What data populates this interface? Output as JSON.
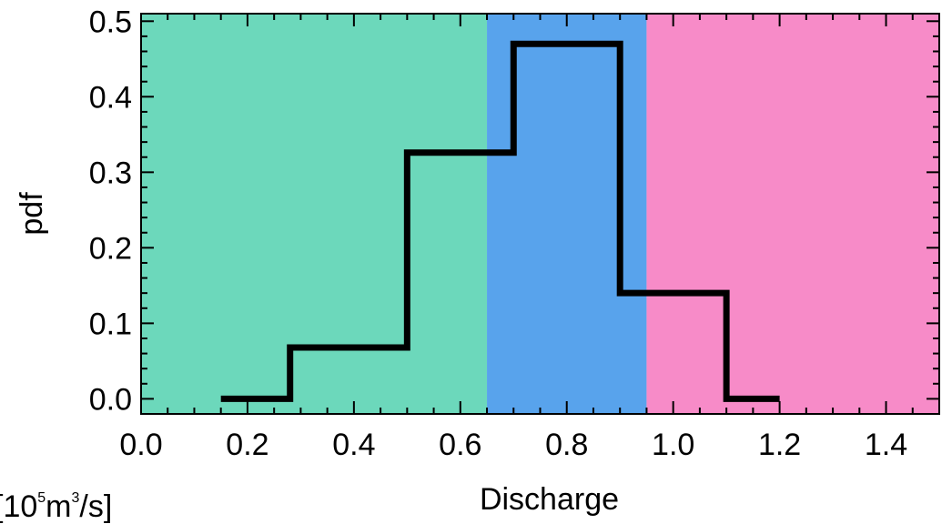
{
  "chart_data": {
    "type": "step",
    "title": "",
    "xlabel": "Discharge",
    "ylabel": "pdf",
    "unit_note": {
      "prefix": "[10",
      "exp": "5",
      "mid": "m",
      "exp2": "3",
      "suffix": "/s]"
    },
    "xlim": [
      0.0,
      1.5
    ],
    "ylim": [
      -0.02,
      0.51
    ],
    "xticks": [
      0.0,
      0.2,
      0.4,
      0.6,
      0.8,
      1.0,
      1.2,
      1.4
    ],
    "xtick_labels": [
      "0.0",
      "0.2",
      "0.4",
      "0.6",
      "0.8",
      "1.0",
      "1.2",
      "1.4"
    ],
    "yticks": [
      0.0,
      0.1,
      0.2,
      0.3,
      0.4,
      0.5
    ],
    "ytick_labels": [
      "0.0",
      "0.1",
      "0.2",
      "0.3",
      "0.4",
      "0.5"
    ],
    "regions": [
      {
        "x0": 0.0,
        "x1": 0.65,
        "color": "#6cd8bb"
      },
      {
        "x0": 0.65,
        "x1": 0.95,
        "color": "#58a3ec"
      },
      {
        "x0": 0.95,
        "x1": 1.5,
        "color": "#f78bc8"
      }
    ],
    "bins": [
      {
        "x0": 0.15,
        "x1": 0.28,
        "pdf": 0.0
      },
      {
        "x0": 0.28,
        "x1": 0.5,
        "pdf": 0.068
      },
      {
        "x0": 0.5,
        "x1": 0.7,
        "pdf": 0.326
      },
      {
        "x0": 0.7,
        "x1": 0.9,
        "pdf": 0.47
      },
      {
        "x0": 0.9,
        "x1": 1.1,
        "pdf": 0.14
      },
      {
        "x0": 1.1,
        "x1": 1.2,
        "pdf": 0.0
      }
    ],
    "line_color": "#000000",
    "grid": false
  }
}
